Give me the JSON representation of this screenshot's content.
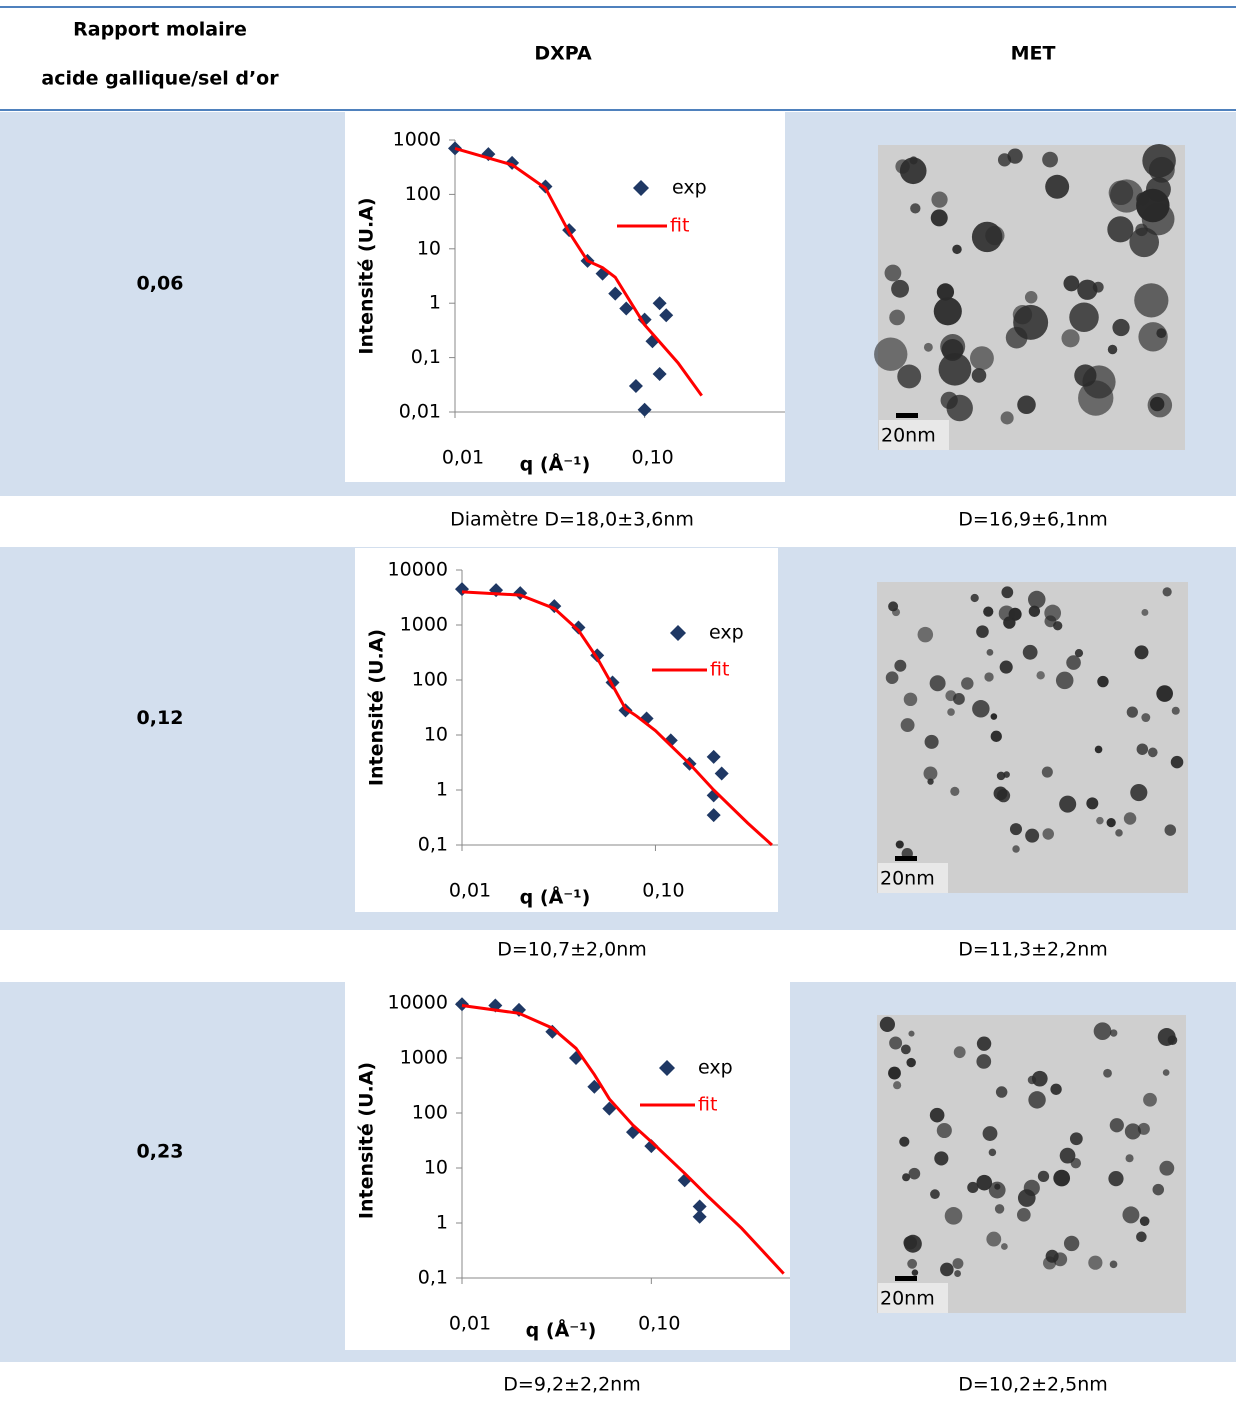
{
  "table": {
    "header": {
      "ratio": [
        "Rapport molaire",
        "acide gallique/sel d’or"
      ],
      "dxpa": "DXPA",
      "met": "MET"
    },
    "rows": [
      {
        "ratio": "0,06",
        "dxpa_caption": "Diamètre D=18,0±3,6nm",
        "met_caption": "D=16,9±6,1nm",
        "scale_label": "20nm"
      },
      {
        "ratio": "0,12",
        "dxpa_caption": "D=10,7±2,0nm",
        "met_caption": "D=11,3±2,2nm",
        "scale_label": "20nm"
      },
      {
        "ratio": "0,23",
        "dxpa_caption": "D=9,2±2,2nm",
        "met_caption": "D=10,2±2,5nm",
        "scale_label": "20nm"
      }
    ]
  },
  "chart_data": [
    {
      "type": "scatter",
      "xlabel": "q (Å⁻¹)",
      "ylabel": "Intensité (U.A)",
      "log_x": true,
      "log_y": true,
      "xlim": [
        0.01,
        0.55
      ],
      "ylim": [
        0.01,
        1000
      ],
      "xticks": [
        {
          "value": 0.01,
          "label": "0,01"
        },
        {
          "value": 0.1,
          "label": "0,10"
        }
      ],
      "yticks": [
        {
          "value": 0.01,
          "label": "0,01"
        },
        {
          "value": 0.1,
          "label": "0,1"
        },
        1,
        10,
        100,
        1000
      ],
      "series": [
        {
          "name": "exp",
          "color": "#1f3864",
          "marker": "diamond",
          "x": [
            0.01,
            0.015,
            0.02,
            0.03,
            0.04,
            0.05,
            0.06,
            0.07,
            0.08,
            0.1,
            0.12,
            0.13,
            0.11,
            0.09,
            0.1,
            0.12
          ],
          "values": [
            700,
            550,
            380,
            140,
            22,
            6,
            3.5,
            1.5,
            0.8,
            0.5,
            1,
            0.6,
            0.2,
            0.03,
            0.011,
            0.05
          ]
        },
        {
          "name": "fit",
          "color": "#ff0000",
          "marker": "line",
          "x": [
            0.01,
            0.02,
            0.03,
            0.04,
            0.05,
            0.06,
            0.07,
            0.1,
            0.15,
            0.2
          ],
          "values": [
            700,
            350,
            130,
            20,
            6,
            4.5,
            3,
            0.4,
            0.08,
            0.02
          ]
        }
      ]
    },
    {
      "type": "scatter",
      "xlabel": "q (Å⁻¹)",
      "ylabel": "Intensité (U.A)",
      "log_x": true,
      "log_y": true,
      "xlim": [
        0.01,
        0.43
      ],
      "ylim": [
        0.1,
        10000
      ],
      "xticks": [
        {
          "value": 0.01,
          "label": "0,01"
        },
        {
          "value": 0.1,
          "label": "0,10"
        }
      ],
      "yticks": [
        {
          "value": 0.1,
          "label": "0,1"
        },
        1,
        10,
        100,
        1000,
        10000
      ],
      "series": [
        {
          "name": "exp",
          "color": "#1f3864",
          "marker": "diamond",
          "x": [
            0.01,
            0.015,
            0.02,
            0.03,
            0.04,
            0.05,
            0.06,
            0.07,
            0.09,
            0.12,
            0.15,
            0.2,
            0.2,
            0.2,
            0.22
          ],
          "values": [
            4500,
            4300,
            3800,
            2200,
            900,
            280,
            90,
            28,
            20,
            8,
            3,
            4,
            0.8,
            0.35,
            2
          ]
        },
        {
          "name": "fit",
          "color": "#ff0000",
          "marker": "line",
          "x": [
            0.01,
            0.02,
            0.03,
            0.04,
            0.05,
            0.06,
            0.07,
            0.08,
            0.1,
            0.15,
            0.2,
            0.3,
            0.4
          ],
          "values": [
            4000,
            3500,
            2000,
            800,
            250,
            80,
            30,
            22,
            12,
            3,
            1,
            0.25,
            0.1
          ]
        }
      ]
    },
    {
      "type": "scatter",
      "xlabel": "q (Å⁻¹)",
      "ylabel": "Intensité (U.A)",
      "log_x": true,
      "log_y": true,
      "xlim": [
        0.01,
        0.54
      ],
      "ylim": [
        0.1,
        10000
      ],
      "xticks": [
        {
          "value": 0.01,
          "label": "0,01"
        },
        {
          "value": 0.1,
          "label": "0,10"
        }
      ],
      "yticks": [
        {
          "value": 0.1,
          "label": "0,1"
        },
        1,
        10,
        100,
        1000,
        10000
      ],
      "series": [
        {
          "name": "exp",
          "color": "#1f3864",
          "marker": "diamond",
          "x": [
            0.01,
            0.015,
            0.02,
            0.03,
            0.04,
            0.05,
            0.06,
            0.08,
            0.1,
            0.15,
            0.18,
            0.18
          ],
          "values": [
            9500,
            9000,
            7500,
            3000,
            1000,
            300,
            120,
            45,
            25,
            6,
            2,
            1.3
          ]
        },
        {
          "name": "fit",
          "color": "#ff0000",
          "marker": "line",
          "x": [
            0.01,
            0.02,
            0.03,
            0.04,
            0.05,
            0.06,
            0.08,
            0.1,
            0.15,
            0.2,
            0.3,
            0.5
          ],
          "values": [
            9000,
            6500,
            3500,
            1500,
            500,
            180,
            60,
            30,
            8,
            3,
            0.8,
            0.12
          ]
        }
      ]
    }
  ]
}
